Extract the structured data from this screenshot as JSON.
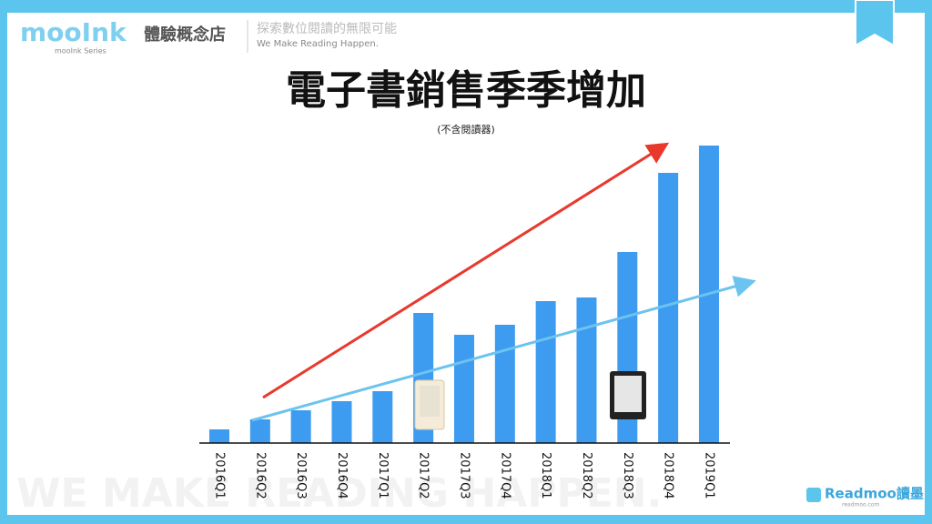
{
  "header": {
    "logo": "mooInk",
    "store": "體驗概念店",
    "series": "mooInk Series",
    "slogan_zh": "探索數位閱讀的無限可能",
    "slogan_en": "We Make Reading Happen."
  },
  "chart_data": {
    "type": "bar",
    "title": "電子書銷售季季增加",
    "subtitle": "(不含閱讀器)",
    "categories": [
      "2016Q1",
      "2016Q2",
      "2016Q3",
      "2016Q4",
      "2017Q1",
      "2017Q2",
      "2017Q3",
      "2017Q4",
      "2018Q1",
      "2018Q2",
      "2018Q3",
      "2018Q4",
      "2019Q1"
    ],
    "values": [
      15,
      26,
      36,
      46,
      57,
      143,
      119,
      130,
      156,
      160,
      210,
      297,
      327
    ],
    "color": "#3d9bf0"
  },
  "footer": {
    "watermark": "WE MAKE READING HAPPEN.",
    "brand": "Readmoo讀墨",
    "site": "readmoo.com"
  }
}
